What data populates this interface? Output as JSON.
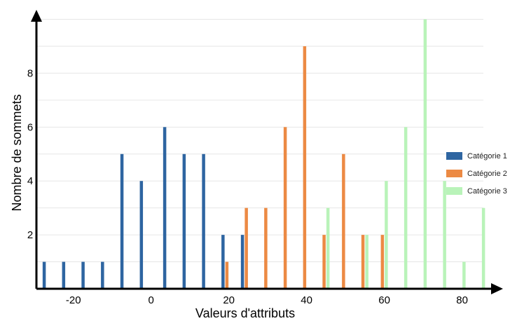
{
  "chart_data": {
    "type": "bar",
    "title": "",
    "xlabel": "Valeurs d'attributs",
    "ylabel": "Nombre de sommets",
    "x_ticks": [
      -20,
      0,
      20,
      40,
      60,
      80
    ],
    "y_ticks": [
      2,
      4,
      6,
      8
    ],
    "xlim": [
      -29.5,
      88
    ],
    "ylim": [
      0,
      10.3
    ],
    "grid": "horizontal",
    "legend_position": "right",
    "series": [
      {
        "name": "Catégorie 1",
        "color": "#2e65a1",
        "points": [
          {
            "x": -27.5,
            "y": 1
          },
          {
            "x": -22.5,
            "y": 1
          },
          {
            "x": -17.5,
            "y": 1
          },
          {
            "x": -12.5,
            "y": 1
          },
          {
            "x": -7.5,
            "y": 5
          },
          {
            "x": -2.5,
            "y": 4
          },
          {
            "x": 3.5,
            "y": 6
          },
          {
            "x": 8.5,
            "y": 5
          },
          {
            "x": 13.5,
            "y": 5
          },
          {
            "x": 18.5,
            "y": 2
          },
          {
            "x": 23.5,
            "y": 2
          }
        ]
      },
      {
        "name": "Catégorie 2",
        "color": "#ec8a44",
        "points": [
          {
            "x": 19.5,
            "y": 1
          },
          {
            "x": 24.5,
            "y": 3
          },
          {
            "x": 29.5,
            "y": 3
          },
          {
            "x": 34.5,
            "y": 6
          },
          {
            "x": 39.5,
            "y": 9
          },
          {
            "x": 44.5,
            "y": 2
          },
          {
            "x": 49.5,
            "y": 5
          },
          {
            "x": 54.5,
            "y": 2
          },
          {
            "x": 59.5,
            "y": 2
          }
        ]
      },
      {
        "name": "Catégorie 3",
        "color": "#b9f3b9",
        "points": [
          {
            "x": 45.5,
            "y": 3
          },
          {
            "x": 55.5,
            "y": 2
          },
          {
            "x": 60.5,
            "y": 4
          },
          {
            "x": 65.5,
            "y": 6
          },
          {
            "x": 70.5,
            "y": 10
          },
          {
            "x": 75.5,
            "y": 4
          },
          {
            "x": 80.5,
            "y": 1
          },
          {
            "x": 85.5,
            "y": 3
          }
        ]
      }
    ]
  }
}
